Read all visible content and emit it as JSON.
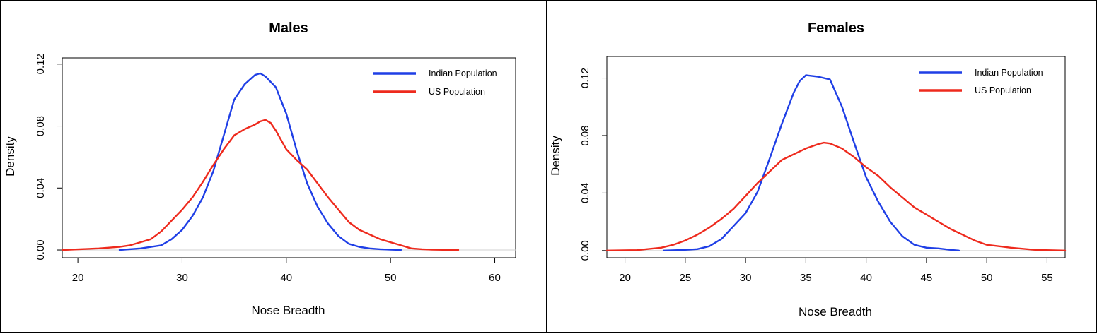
{
  "chart_data": [
    {
      "type": "line",
      "title": "Males",
      "xlabel": "Nose Breadth",
      "ylabel": "Density",
      "xlim": [
        18.5,
        62
      ],
      "ylim": [
        -0.005,
        0.124
      ],
      "xticks": [
        20,
        30,
        40,
        50,
        60
      ],
      "xtick_labels": [
        "20",
        "30",
        "40",
        "50",
        "60"
      ],
      "yticks": [
        0,
        0.04,
        0.08,
        0.12
      ],
      "ytick_labels": [
        "0.00",
        "0.04",
        "0.08",
        "0.12"
      ],
      "baseline": 0,
      "legend_position": "top-right",
      "series": [
        {
          "name": "Indian Population",
          "color": "#1f3fe6",
          "x": [
            24,
            26,
            28,
            29,
            30,
            31,
            32,
            33,
            34,
            35,
            36,
            37,
            37.5,
            38,
            39,
            40,
            41,
            42,
            43,
            44,
            45,
            46,
            47,
            48,
            49,
            50,
            51
          ],
          "y": [
            0.0,
            0.001,
            0.003,
            0.007,
            0.013,
            0.022,
            0.034,
            0.051,
            0.074,
            0.097,
            0.107,
            0.113,
            0.114,
            0.112,
            0.105,
            0.088,
            0.064,
            0.043,
            0.028,
            0.017,
            0.009,
            0.004,
            0.002,
            0.001,
            0.0005,
            0.0002,
            0.0
          ]
        },
        {
          "name": "US Population",
          "color": "#ee2a1d",
          "x": [
            18.5,
            22,
            24,
            25,
            26,
            27,
            28,
            29,
            30,
            31,
            32,
            33,
            34,
            35,
            36,
            37,
            37.5,
            38,
            38.5,
            39,
            40,
            41,
            42,
            43,
            44,
            45,
            46,
            47,
            48,
            49,
            50,
            51,
            52,
            53,
            54,
            55,
            56.5
          ],
          "y": [
            0.0,
            0.001,
            0.002,
            0.003,
            0.005,
            0.007,
            0.012,
            0.019,
            0.026,
            0.034,
            0.044,
            0.055,
            0.065,
            0.074,
            0.078,
            0.081,
            0.083,
            0.084,
            0.082,
            0.077,
            0.065,
            0.058,
            0.052,
            0.043,
            0.034,
            0.026,
            0.018,
            0.013,
            0.01,
            0.007,
            0.005,
            0.003,
            0.001,
            0.0005,
            0.0002,
            0.0001,
            0.0
          ]
        }
      ]
    },
    {
      "type": "line",
      "title": "Females",
      "xlabel": "Nose Breadth",
      "ylabel": "Density",
      "xlim": [
        18.5,
        56.5
      ],
      "ylim": [
        -0.005,
        0.135
      ],
      "xticks": [
        20,
        25,
        30,
        35,
        40,
        45,
        50,
        55
      ],
      "xtick_labels": [
        "20",
        "25",
        "30",
        "35",
        "40",
        "45",
        "50",
        "55"
      ],
      "yticks": [
        0,
        0.04,
        0.08,
        0.12
      ],
      "ytick_labels": [
        "0.00",
        "0.04",
        "0.08",
        "0.12"
      ],
      "baseline": 0,
      "legend_position": "top-right",
      "series": [
        {
          "name": "Indian Population",
          "color": "#1f3fe6",
          "x": [
            23.2,
            25,
            26,
            27,
            28,
            29,
            30,
            31,
            32,
            33,
            34,
            34.5,
            35,
            36,
            37,
            38,
            39,
            40,
            41,
            42,
            43,
            44,
            45,
            46,
            47,
            47.7
          ],
          "y": [
            0.0,
            0.0005,
            0.001,
            0.003,
            0.008,
            0.017,
            0.026,
            0.041,
            0.064,
            0.088,
            0.11,
            0.118,
            0.122,
            0.121,
            0.119,
            0.1,
            0.075,
            0.051,
            0.034,
            0.02,
            0.01,
            0.004,
            0.002,
            0.0015,
            0.0005,
            0.0
          ]
        },
        {
          "name": "US Population",
          "color": "#ee2a1d",
          "x": [
            18.5,
            21,
            23,
            24,
            25,
            26,
            27,
            28,
            29,
            30,
            31,
            32,
            33,
            34,
            35,
            36,
            36.5,
            37,
            38,
            39,
            40,
            41,
            42,
            43,
            44,
            45,
            46,
            47,
            48,
            49,
            50,
            51,
            52,
            54,
            56.5
          ],
          "y": [
            0.0,
            0.0003,
            0.002,
            0.004,
            0.007,
            0.011,
            0.016,
            0.022,
            0.029,
            0.038,
            0.047,
            0.055,
            0.063,
            0.067,
            0.071,
            0.074,
            0.075,
            0.0745,
            0.071,
            0.065,
            0.058,
            0.052,
            0.044,
            0.037,
            0.03,
            0.025,
            0.02,
            0.015,
            0.011,
            0.007,
            0.004,
            0.003,
            0.002,
            0.0005,
            0.0
          ]
        }
      ]
    }
  ]
}
